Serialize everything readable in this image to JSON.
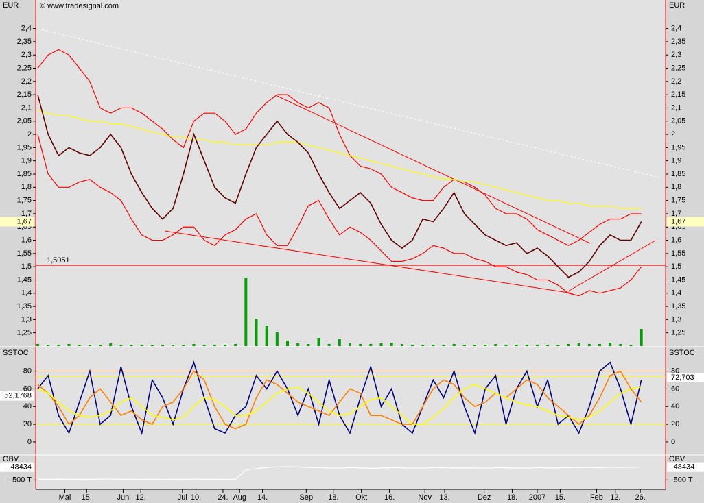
{
  "chart_data": [
    {
      "type": "line",
      "axis_label": "EUR",
      "copyright": "© www.tradesignal.com",
      "ylim": [
        1.2,
        2.5
      ],
      "yticks": [
        {
          "value": 1.25,
          "label": "1,25"
        },
        {
          "value": 1.3,
          "label": "1,3"
        },
        {
          "value": 1.35,
          "label": "1,35"
        },
        {
          "value": 1.4,
          "label": "1,4"
        },
        {
          "value": 1.45,
          "label": "1,45"
        },
        {
          "value": 1.5,
          "label": "1,5"
        },
        {
          "value": 1.55,
          "label": "1,55"
        },
        {
          "value": 1.6,
          "label": "1,6"
        },
        {
          "value": 1.65,
          "label": "1,65"
        },
        {
          "value": 1.7,
          "label": "1,7"
        },
        {
          "value": 1.75,
          "label": "1,75"
        },
        {
          "value": 1.8,
          "label": "1,8"
        },
        {
          "value": 1.85,
          "label": "1,85"
        },
        {
          "value": 1.9,
          "label": "1,9"
        },
        {
          "value": 1.95,
          "label": "1,95"
        },
        {
          "value": 2,
          "label": "2"
        },
        {
          "value": 2.05,
          "label": "2,05"
        },
        {
          "value": 2.1,
          "label": "2,1"
        },
        {
          "value": 2.15,
          "label": "2,15"
        },
        {
          "value": 2.2,
          "label": "2,2"
        },
        {
          "value": 2.25,
          "label": "2,25"
        },
        {
          "value": 2.3,
          "label": "2,3"
        },
        {
          "value": 2.35,
          "label": "2,35"
        },
        {
          "value": 2.4,
          "label": "2,4"
        }
      ],
      "xlim": [
        0,
        60
      ],
      "xticks": [
        {
          "value": 2.6,
          "label": "Mai"
        },
        {
          "value": 4.7,
          "label": "15."
        },
        {
          "value": 8.2,
          "label": "Jun"
        },
        {
          "value": 9.9,
          "label": "12."
        },
        {
          "value": 13.9,
          "label": "Jul"
        },
        {
          "value": 15.2,
          "label": "10."
        },
        {
          "value": 17.8,
          "label": "24."
        },
        {
          "value": 19.4,
          "label": "Aug"
        },
        {
          "value": 21.6,
          "label": "14."
        },
        {
          "value": 25.8,
          "label": "Sep"
        },
        {
          "value": 28.4,
          "label": "18."
        },
        {
          "value": 31.1,
          "label": "Okt"
        },
        {
          "value": 33.8,
          "label": "16."
        },
        {
          "value": 37.2,
          "label": "Nov"
        },
        {
          "value": 39.1,
          "label": "13."
        },
        {
          "value": 42.9,
          "label": "Dez"
        },
        {
          "value": 45.6,
          "label": "18."
        },
        {
          "value": 48,
          "label": "2007"
        },
        {
          "value": 50.2,
          "label": "15."
        },
        {
          "value": 53.7,
          "label": "Feb"
        },
        {
          "value": 55.5,
          "label": "12."
        },
        {
          "value": 57.9,
          "label": "26."
        }
      ],
      "series": [
        {
          "color": "#ff0000",
          "values": [
            2.25,
            2.3,
            2.32,
            2.3,
            2.25,
            2.2,
            2.1,
            2.08,
            2.1,
            2.1,
            2.08,
            2.05,
            2.02,
            1.98,
            1.95,
            2.05,
            2.08,
            2.08,
            2.05,
            2.0,
            2.02,
            2.08,
            2.12,
            2.15,
            2.15,
            2.12,
            2.1,
            2.12,
            2.1,
            2.0,
            1.92,
            1.88,
            1.87,
            1.85,
            1.8,
            1.78,
            1.76,
            1.75,
            1.75,
            1.8,
            1.83,
            1.82,
            1.8,
            1.77,
            1.72,
            1.7,
            1.7,
            1.68,
            1.64,
            1.62,
            1.6,
            1.58,
            1.6,
            1.63,
            1.66,
            1.68,
            1.68,
            1.7,
            1.7
          ]
        },
        {
          "color": "#ff0000",
          "values": [
            2.0,
            1.85,
            1.8,
            1.8,
            1.82,
            1.83,
            1.8,
            1.78,
            1.75,
            1.68,
            1.62,
            1.6,
            1.6,
            1.62,
            1.65,
            1.65,
            1.6,
            1.58,
            1.62,
            1.64,
            1.68,
            1.7,
            1.62,
            1.58,
            1.58,
            1.65,
            1.73,
            1.75,
            1.68,
            1.62,
            1.65,
            1.63,
            1.6,
            1.56,
            1.52,
            1.52,
            1.53,
            1.55,
            1.58,
            1.57,
            1.55,
            1.55,
            1.53,
            1.52,
            1.5,
            1.5,
            1.48,
            1.47,
            1.45,
            1.45,
            1.43,
            1.4,
            1.39,
            1.41,
            1.4,
            1.41,
            1.42,
            1.45,
            1.5
          ]
        },
        {
          "color": "#ffff00",
          "values": [
            2.09,
            2.08,
            2.07,
            2.07,
            2.06,
            2.05,
            2.05,
            2.04,
            2.04,
            2.03,
            2.02,
            2.01,
            2.0,
            1.99,
            1.99,
            1.98,
            1.98,
            1.97,
            1.97,
            1.96,
            1.96,
            1.96,
            1.96,
            1.97,
            1.97,
            1.97,
            1.96,
            1.95,
            1.94,
            1.93,
            1.92,
            1.91,
            1.9,
            1.89,
            1.88,
            1.87,
            1.86,
            1.85,
            1.84,
            1.83,
            1.83,
            1.82,
            1.82,
            1.81,
            1.8,
            1.79,
            1.78,
            1.77,
            1.76,
            1.75,
            1.75,
            1.74,
            1.74,
            1.73,
            1.73,
            1.73,
            1.72,
            1.72,
            1.72
          ]
        },
        {
          "color": "#600000",
          "values": [
            2.15,
            2.0,
            1.92,
            1.95,
            1.93,
            1.92,
            1.95,
            2.0,
            1.95,
            1.85,
            1.78,
            1.72,
            1.68,
            1.72,
            1.85,
            2.0,
            1.9,
            1.8,
            1.76,
            1.74,
            1.85,
            1.95,
            2.0,
            2.05,
            2.0,
            1.97,
            1.93,
            1.85,
            1.78,
            1.72,
            1.75,
            1.78,
            1.74,
            1.66,
            1.6,
            1.57,
            1.6,
            1.68,
            1.67,
            1.72,
            1.78,
            1.7,
            1.66,
            1.62,
            1.6,
            1.58,
            1.59,
            1.55,
            1.57,
            1.54,
            1.5,
            1.46,
            1.48,
            1.52,
            1.58,
            1.62,
            1.6,
            1.6,
            1.67
          ]
        }
      ],
      "level": {
        "value": 1.5051,
        "label": "1,5051",
        "color": "#ff0000"
      },
      "last": {
        "value": 1.67,
        "label": "1,67"
      },
      "volume": {
        "color": "#00a000",
        "vlim": [
          0,
          100
        ],
        "values": [
          3,
          2,
          2,
          3,
          2,
          2,
          2,
          4,
          2,
          2,
          2,
          2,
          2,
          2,
          2,
          3,
          2,
          2,
          2,
          3,
          100,
          40,
          30,
          20,
          8,
          4,
          3,
          12,
          3,
          10,
          4,
          3,
          3,
          4,
          5,
          3,
          2,
          2,
          2,
          2,
          3,
          2,
          2,
          2,
          3,
          2,
          2,
          2,
          2,
          2,
          2,
          3,
          4,
          3,
          3,
          5,
          3,
          2,
          25
        ]
      }
    },
    {
      "type": "line",
      "axis_label": "SSTOC",
      "ylim": [
        -14,
        106
      ],
      "yticks": [
        0,
        20,
        40,
        60,
        80
      ],
      "levels": [
        {
          "value": 20,
          "color": "#ffff00"
        },
        {
          "value": 74,
          "color": "#ffff00"
        },
        {
          "value": 80,
          "color": "#ffb060"
        }
      ],
      "series": [
        {
          "color": "#000080",
          "values": [
            60,
            75,
            30,
            10,
            45,
            80,
            20,
            30,
            85,
            40,
            10,
            70,
            50,
            20,
            60,
            90,
            50,
            15,
            10,
            30,
            40,
            75,
            60,
            80,
            60,
            30,
            60,
            20,
            70,
            30,
            10,
            50,
            85,
            40,
            60,
            20,
            10,
            40,
            70,
            50,
            80,
            40,
            10,
            60,
            75,
            20,
            60,
            80,
            40,
            70,
            20,
            30,
            10,
            40,
            80,
            90,
            60,
            20,
            70
          ]
        },
        {
          "color": "#ff8000",
          "values": [
            65,
            55,
            40,
            20,
            30,
            50,
            60,
            45,
            30,
            35,
            25,
            20,
            40,
            45,
            60,
            80,
            70,
            40,
            20,
            15,
            20,
            50,
            70,
            65,
            55,
            45,
            40,
            35,
            30,
            45,
            60,
            55,
            30,
            30,
            25,
            20,
            20,
            40,
            60,
            70,
            65,
            50,
            40,
            45,
            55,
            50,
            60,
            70,
            65,
            50,
            40,
            30,
            20,
            30,
            50,
            75,
            80,
            60,
            45
          ]
        },
        {
          "color": "#ffff00",
          "values": [
            60,
            55,
            45,
            35,
            30,
            28,
            30,
            35,
            45,
            50,
            40,
            30,
            28,
            25,
            28,
            40,
            50,
            48,
            40,
            30,
            30,
            35,
            45,
            55,
            60,
            62,
            55,
            45,
            35,
            30,
            32,
            40,
            48,
            50,
            40,
            30,
            20,
            20,
            28,
            38,
            50,
            60,
            65,
            60,
            55,
            50,
            45,
            42,
            40,
            35,
            30,
            28,
            25,
            28,
            35,
            45,
            55,
            60,
            62
          ]
        }
      ],
      "first": {
        "value": 52.1768,
        "label": "52,1768"
      },
      "last": {
        "value": 72.703,
        "label": "72,703"
      }
    },
    {
      "type": "line",
      "axis_label": "OBV",
      "ylim": [
        -780000,
        330000
      ],
      "yticks": [
        {
          "value": -500000,
          "label": "-500 T"
        }
      ],
      "series": [
        {
          "color": "#ffffff",
          "values": [
            -470000,
            -475000,
            -470000,
            -478000,
            -472000,
            -475000,
            -470000,
            -468000,
            -472000,
            -475000,
            -478000,
            -476000,
            -480000,
            -476000,
            -474000,
            -470000,
            -472000,
            -476000,
            -478000,
            -475000,
            -150000,
            -100000,
            -60000,
            -40000,
            -30000,
            -40000,
            -60000,
            -70000,
            -80000,
            -85000,
            -70000,
            -75000,
            -90000,
            -80000,
            -70000,
            -75000,
            -85000,
            -80000,
            -65000,
            -70000,
            -80000,
            -75000,
            -80000,
            -85000,
            -70000,
            -75000,
            -80000,
            -85000,
            -70000,
            -80000,
            -75000,
            -70000,
            -65000,
            -60000,
            -70000,
            -55000,
            -60000,
            -55000,
            -48434
          ]
        }
      ],
      "last": {
        "value": -48434,
        "label": "-48434"
      }
    }
  ]
}
